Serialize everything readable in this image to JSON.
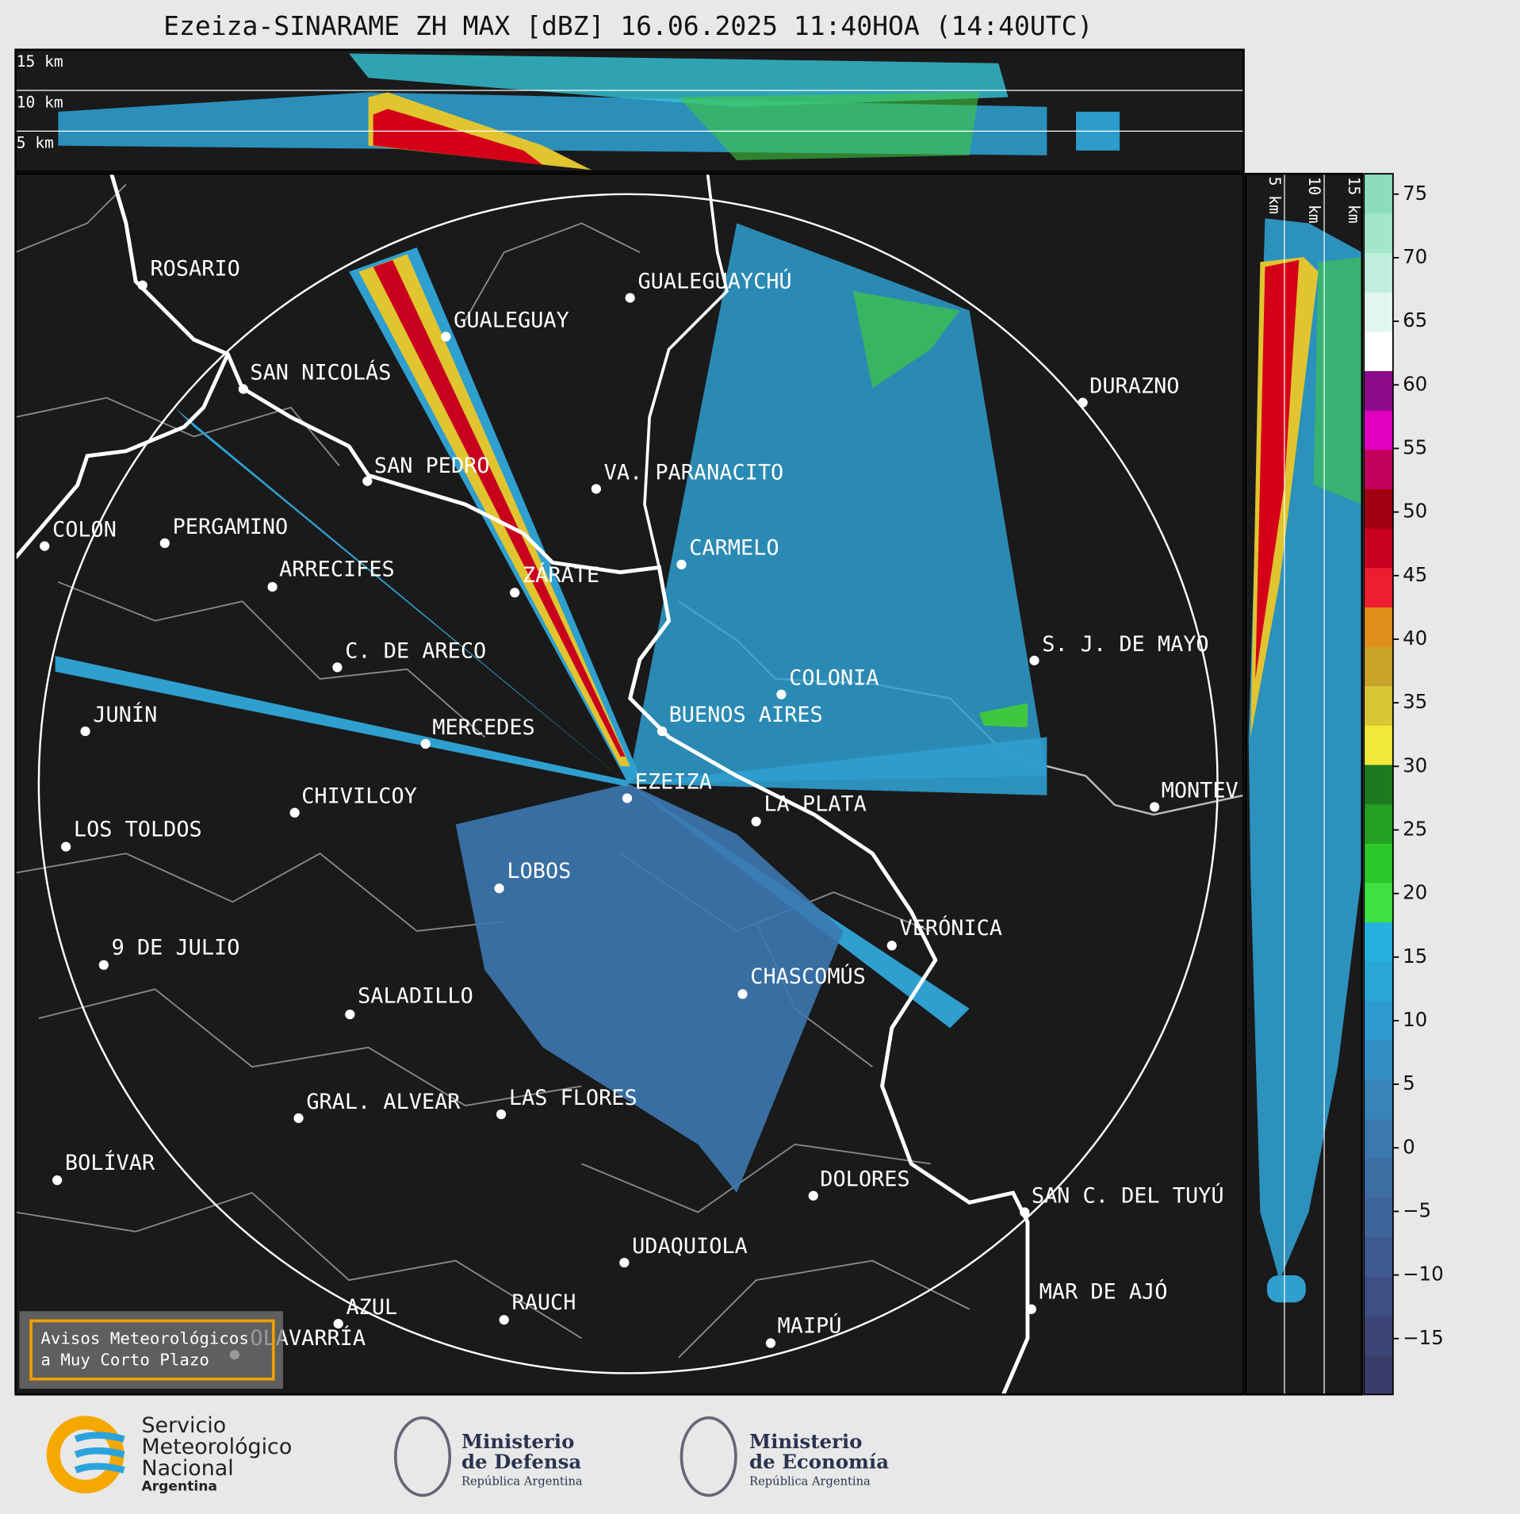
{
  "title": "Ezeiza-SINARAME ZH MAX [dBZ] 16.06.2025 11:40HOA (14:40UTC)",
  "cross_section_top": {
    "height_labels": [
      "15 km",
      "10 km",
      "5 km"
    ]
  },
  "cross_section_right": {
    "height_labels": [
      "5 km",
      "10 km",
      "15 km"
    ]
  },
  "cities": [
    "ROSARIO",
    "GUALEGUAYCHÚ",
    "GUALEGUAY",
    "SAN NICOLÁS",
    "DURAZNO",
    "SAN PEDRO",
    "VA. PARANACITO",
    "COLON",
    "PERGAMINO",
    "CARMELO",
    "ARRECIFES",
    "ZÁRATE",
    "S. J. DE MAYO",
    "C. DE ARECO",
    "COLONIA",
    "BUENOS AIRES",
    "JUNÍN",
    "MERCEDES",
    "EZEIZA",
    "MONTEV",
    "LA PLATA",
    "CHIVILCOY",
    "LOS TOLDOS",
    "LOBOS",
    "VERÓNICA",
    "9 DE JULIO",
    "CHASCOMÚS",
    "SALADILLO",
    "GRAL. ALVEAR",
    "LAS FLORES",
    "BOLÍVAR",
    "DOLORES",
    "SAN C. DEL TUYÚ",
    "UDAQUIOLA",
    "MAR DE AJÓ",
    "RAUCH",
    "AZUL",
    "OLAVARRÍA",
    "MAIPÚ"
  ],
  "colorbar": {
    "lim": [
      -19.4,
      76.6
    ],
    "ticks": [
      {
        "value": -15,
        "label": "−15"
      },
      {
        "value": -10,
        "label": "−10"
      },
      {
        "value": -5,
        "label": "−5"
      },
      0,
      5,
      10,
      15,
      20,
      25,
      30,
      35,
      40,
      45,
      50,
      55,
      60,
      65,
      70,
      75
    ],
    "colors": [
      "#3a3d6a",
      "#3b4677",
      "#3c5083",
      "#3d5a8f",
      "#3e6499",
      "#3d6ea4",
      "#3b78ae",
      "#3883b9",
      "#338ec3",
      "#2e99cc",
      "#29a5d6",
      "#26b0df",
      "#3fe040",
      "#2bc72b",
      "#239f23",
      "#1e7a1e",
      "#f0e83a",
      "#d8c632",
      "#c9a22a",
      "#e08e1a",
      "#ee1e2e",
      "#c8001e",
      "#a00010",
      "#c0005a",
      "#e000c0",
      "#8a0a8a",
      "#ffffff",
      "#e0f6ee",
      "#bfeedd",
      "#a3e6cc",
      "#8cdcbe"
    ]
  },
  "notice": {
    "lines": [
      "Avisos Meteorológicos",
      "a Muy Corto Plazo"
    ]
  },
  "logos": {
    "smn": [
      "Servicio",
      "Meteorológico",
      "Nacional",
      "Argentina"
    ],
    "defensa": [
      "Ministerio",
      "de Defensa",
      "República Argentina"
    ],
    "economia": [
      "Ministerio",
      "de Economía",
      "República Argentina"
    ]
  }
}
